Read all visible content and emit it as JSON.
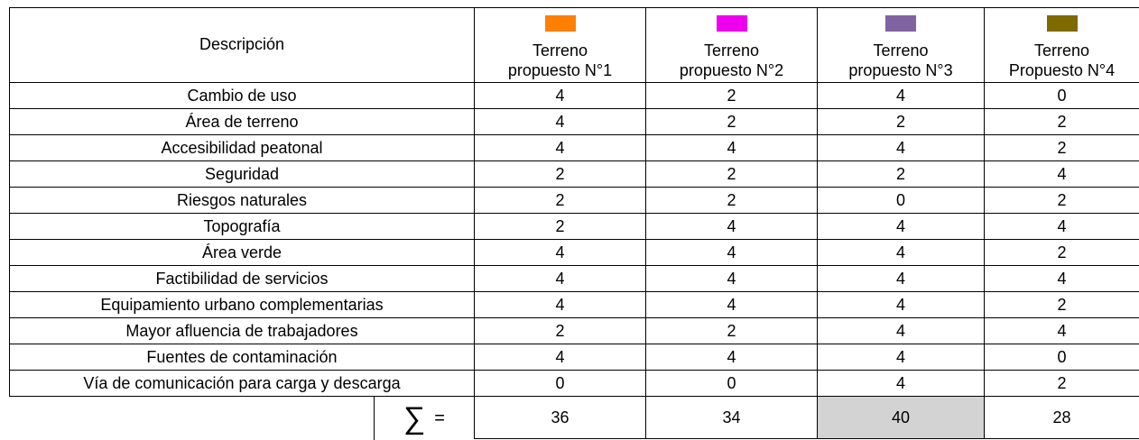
{
  "table": {
    "header": {
      "description": "Descripción",
      "columns": [
        {
          "line1": "Terreno",
          "line2": "propuesto N°1",
          "color": "#ff7f00"
        },
        {
          "line1": "Terreno",
          "line2": "propuesto N°2",
          "color": "#ee00ee"
        },
        {
          "line1": "Terreno",
          "line2": "propuesto N°3",
          "color": "#8064a2"
        },
        {
          "line1": "Terreno",
          "line2": "Propuesto N°4",
          "color": "#7f6a00"
        }
      ]
    },
    "rows": [
      {
        "label": "Cambio de uso",
        "values": [
          4,
          2,
          4,
          0
        ]
      },
      {
        "label": "Área de terreno",
        "values": [
          4,
          2,
          2,
          2
        ]
      },
      {
        "label": "Accesibilidad peatonal",
        "values": [
          4,
          4,
          4,
          2
        ]
      },
      {
        "label": "Seguridad",
        "values": [
          2,
          2,
          2,
          4
        ]
      },
      {
        "label": "Riesgos naturales",
        "values": [
          2,
          2,
          0,
          2
        ]
      },
      {
        "label": "Topografía",
        "values": [
          2,
          4,
          4,
          4
        ]
      },
      {
        "label": "Área verde",
        "values": [
          4,
          4,
          4,
          2
        ]
      },
      {
        "label": "Factibilidad de servicios",
        "values": [
          4,
          4,
          4,
          4
        ]
      },
      {
        "label": "Equipamiento urbano complementarias",
        "values": [
          4,
          4,
          4,
          2
        ]
      },
      {
        "label": "Mayor afluencia de trabajadores",
        "values": [
          2,
          2,
          4,
          4
        ]
      },
      {
        "label": "Fuentes de contaminación",
        "values": [
          4,
          4,
          4,
          0
        ]
      },
      {
        "label": "Vía de comunicación para carga y descarga",
        "values": [
          0,
          0,
          4,
          2
        ]
      }
    ],
    "sum": {
      "symbol": "∑",
      "equals": "=",
      "values": [
        36,
        34,
        40,
        28
      ],
      "highlight": 2,
      "highlight_color": "#d3d3d3"
    }
  }
}
